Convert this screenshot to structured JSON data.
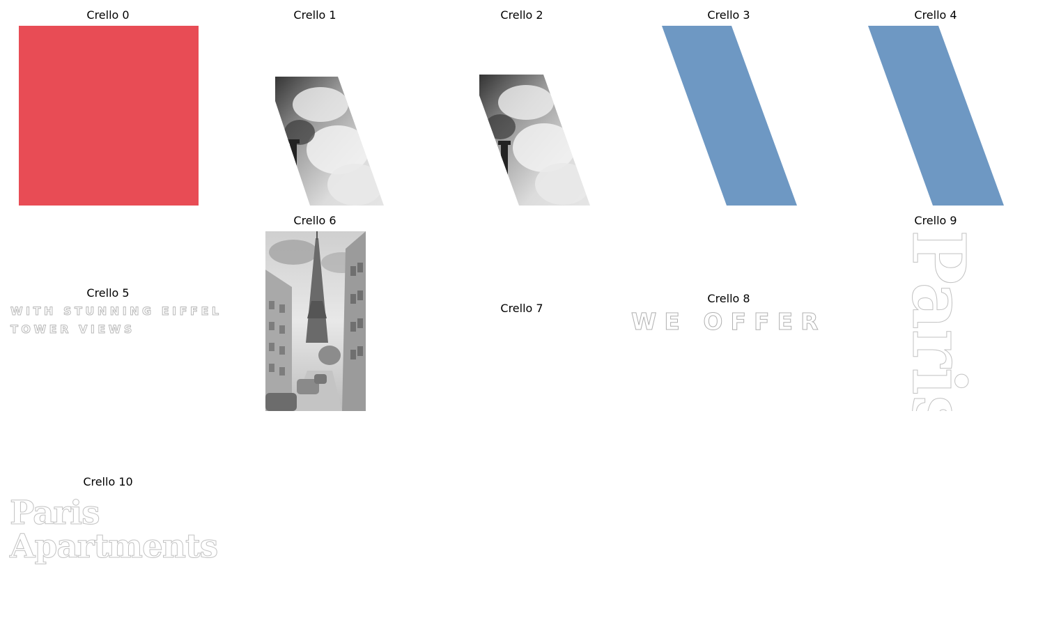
{
  "panels": [
    {
      "label": "Crello 0"
    },
    {
      "label": "Crello 1"
    },
    {
      "label": "Crello 2"
    },
    {
      "label": "Crello 3"
    },
    {
      "label": "Crello 4"
    },
    {
      "label": "Crello 5",
      "text_line1": "WITH STUNNING EIFFEL",
      "text_line2": "TOWER VIEWS"
    },
    {
      "label": "Crello 6"
    },
    {
      "label": "Crello 7"
    },
    {
      "label": "Crello 8",
      "text": "WE OFFER"
    },
    {
      "label": "Crello 9",
      "text": "Paris"
    },
    {
      "label": "Crello 10",
      "text_line1": "Paris",
      "text_line2": "Apartments"
    }
  ],
  "colors": {
    "red_block": "#e84c55",
    "blue_stripe": "#6e98c3",
    "outline_text": "#b8b8b8"
  }
}
